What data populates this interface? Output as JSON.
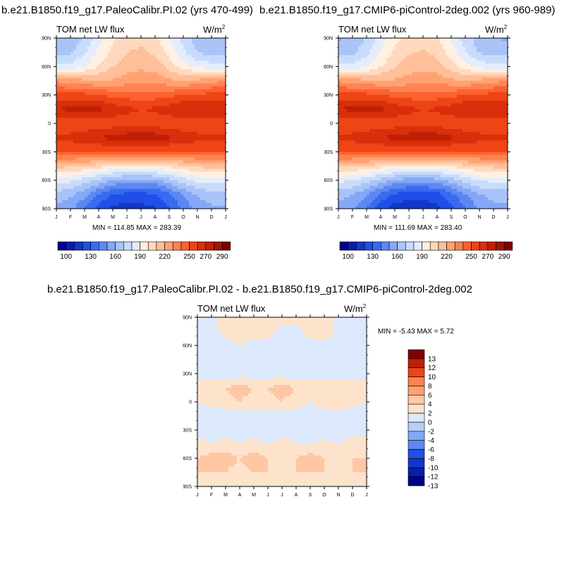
{
  "chart_data": [
    {
      "type": "heatmap",
      "title": "b.e21.B1850.f19_g17.PaleoCalibr.PI.02 (yrs 470-499)",
      "plot_title": "TOM net LW flux",
      "units": "W/m",
      "units_exp": "2",
      "stats": "MIN = 114.85 MAX = 283.39",
      "x_ticks": [
        "J",
        "F",
        "M",
        "A",
        "M",
        "J",
        "J",
        "A",
        "S",
        "O",
        "N",
        "D",
        "J"
      ],
      "y_ticks": [
        "90N",
        "60N",
        "30N",
        "0",
        "30S",
        "60S",
        "90S"
      ],
      "colorbar_labels": [
        "100",
        "130",
        "160",
        "190",
        "220",
        "250",
        "270",
        "290"
      ],
      "colorbar_levels": [
        100,
        110,
        120,
        130,
        140,
        150,
        160,
        170,
        180,
        190,
        200,
        210,
        220,
        230,
        240,
        250,
        260,
        270,
        280,
        290,
        300
      ],
      "field": {
        "lat": [
          -90,
          -75,
          -60,
          -45,
          -30,
          -15,
          0,
          15,
          30,
          45,
          60,
          75,
          90
        ],
        "month_index": [
          0,
          1,
          2,
          3,
          4,
          5,
          6,
          7,
          8,
          9,
          10,
          11,
          12
        ],
        "values": [
          [
            158,
            153,
            140,
            125,
            117,
            116,
            117,
            119,
            128,
            142,
            153,
            158,
            158
          ],
          [
            166,
            162,
            153,
            140,
            130,
            126,
            126,
            128,
            138,
            151,
            161,
            166,
            166
          ],
          [
            185,
            182,
            176,
            168,
            160,
            156,
            156,
            158,
            166,
            176,
            183,
            185,
            185
          ],
          [
            214,
            212,
            209,
            205,
            200,
            198,
            198,
            200,
            203,
            208,
            212,
            214,
            214
          ],
          [
            250,
            249,
            249,
            249,
            249,
            248,
            248,
            248,
            248,
            249,
            249,
            250,
            250
          ],
          [
            262,
            264,
            267,
            270,
            274,
            277,
            278,
            277,
            272,
            267,
            264,
            262,
            262
          ],
          [
            250,
            251,
            252,
            253,
            254,
            254,
            254,
            254,
            253,
            252,
            251,
            250,
            250
          ],
          [
            270,
            274,
            275,
            273,
            267,
            263,
            260,
            262,
            266,
            272,
            272,
            270,
            270
          ],
          [
            253,
            254,
            253,
            250,
            247,
            245,
            244,
            245,
            247,
            250,
            252,
            253,
            253
          ],
          [
            228,
            225,
            223,
            220,
            221,
            224,
            226,
            226,
            222,
            220,
            223,
            227,
            228
          ],
          [
            185,
            184,
            190,
            200,
            210,
            216,
            218,
            216,
            206,
            195,
            188,
            185,
            185
          ],
          [
            165,
            168,
            178,
            192,
            203,
            210,
            212,
            208,
            196,
            182,
            170,
            166,
            165
          ],
          [
            160,
            162,
            172,
            186,
            198,
            205,
            207,
            203,
            190,
            176,
            165,
            161,
            160
          ]
        ]
      }
    },
    {
      "type": "heatmap",
      "title": "b.e21.B1850.f19_g17.CMIP6-piControl-2deg.002 (yrs 960-989)",
      "plot_title": "TOM net LW flux",
      "units": "W/m",
      "units_exp": "2",
      "stats": "MIN = 111.69 MAX = 283.40",
      "x_ticks": [
        "J",
        "F",
        "M",
        "A",
        "M",
        "J",
        "J",
        "A",
        "S",
        "O",
        "N",
        "D",
        "J"
      ],
      "y_ticks": [
        "90N",
        "60N",
        "30N",
        "0",
        "30S",
        "60S",
        "90S"
      ],
      "colorbar_labels": [
        "100",
        "130",
        "160",
        "190",
        "220",
        "250",
        "270",
        "290"
      ],
      "colorbar_levels": [
        100,
        110,
        120,
        130,
        140,
        150,
        160,
        170,
        180,
        190,
        200,
        210,
        220,
        230,
        240,
        250,
        260,
        270,
        280,
        290,
        300
      ],
      "field": {
        "lat": [
          -90,
          -75,
          -60,
          -45,
          -30,
          -15,
          0,
          15,
          30,
          45,
          60,
          75,
          90
        ],
        "month_index": [
          0,
          1,
          2,
          3,
          4,
          5,
          6,
          7,
          8,
          9,
          10,
          11,
          12
        ],
        "values": [
          [
            156,
            151,
            138,
            123,
            115,
            113,
            114,
            117,
            126,
            140,
            151,
            156,
            156
          ],
          [
            164,
            160,
            151,
            138,
            128,
            124,
            124,
            126,
            136,
            149,
            159,
            164,
            164
          ],
          [
            183,
            180,
            174,
            166,
            158,
            154,
            154,
            156,
            164,
            174,
            181,
            183,
            183
          ],
          [
            213,
            211,
            208,
            204,
            199,
            197,
            197,
            199,
            202,
            207,
            211,
            213,
            213
          ],
          [
            250,
            249,
            249,
            249,
            249,
            248,
            248,
            248,
            248,
            249,
            249,
            250,
            250
          ],
          [
            262,
            264,
            267,
            270,
            274,
            277,
            278,
            277,
            272,
            267,
            264,
            262,
            262
          ],
          [
            250,
            251,
            252,
            253,
            254,
            254,
            254,
            254,
            253,
            252,
            251,
            250,
            250
          ],
          [
            270,
            274,
            275,
            273,
            267,
            263,
            260,
            262,
            266,
            272,
            272,
            270,
            270
          ],
          [
            253,
            254,
            253,
            250,
            247,
            245,
            244,
            245,
            247,
            250,
            252,
            253,
            253
          ],
          [
            228,
            225,
            223,
            220,
            221,
            224,
            226,
            226,
            222,
            220,
            223,
            227,
            228
          ],
          [
            184,
            183,
            189,
            199,
            209,
            215,
            217,
            215,
            205,
            194,
            187,
            184,
            184
          ],
          [
            164,
            167,
            177,
            191,
            202,
            209,
            211,
            207,
            195,
            181,
            169,
            165,
            164
          ],
          [
            159,
            161,
            171,
            185,
            197,
            204,
            206,
            202,
            189,
            175,
            164,
            160,
            159
          ]
        ]
      }
    },
    {
      "type": "heatmap",
      "title": "b.e21.B1850.f19_g17.PaleoCalibr.PI.02 - b.e21.B1850.f19_g17.CMIP6-piControl-2deg.002",
      "plot_title": "TOM net LW flux",
      "units": "W/m",
      "units_exp": "2",
      "stats": "MIN =  -5.43 MAX =   5.72",
      "x_ticks": [
        "J",
        "F",
        "M",
        "A",
        "M",
        "J",
        "J",
        "A",
        "S",
        "O",
        "N",
        "D",
        "J"
      ],
      "y_ticks": [
        "90N",
        "60N",
        "30N",
        "0",
        "30S",
        "60S",
        "90S"
      ],
      "colorbar_labels": [
        "13",
        "12",
        "10",
        "8",
        "6",
        "4",
        "2",
        "0",
        "-2",
        "-4",
        "-6",
        "-8",
        "-10",
        "-12",
        "-13"
      ],
      "colorbar_levels": [
        -13,
        -12,
        -10,
        -8,
        -6,
        -4,
        -2,
        0,
        2,
        4,
        6,
        8,
        10,
        12,
        13
      ],
      "field": {
        "lat": [
          -90,
          -75,
          -60,
          -45,
          -30,
          -15,
          0,
          15,
          30,
          45,
          60,
          75,
          90
        ],
        "month_index": [
          0,
          1,
          2,
          3,
          4,
          5,
          6,
          7,
          8,
          9,
          10,
          11,
          12
        ],
        "values": [
          [
            1,
            1,
            1,
            1,
            1,
            1,
            1,
            1,
            2,
            1,
            1,
            1,
            1
          ],
          [
            2,
            2,
            2,
            1,
            2,
            2,
            1,
            2,
            2,
            2,
            1,
            2,
            2
          ],
          [
            2,
            3,
            3,
            2,
            3,
            2,
            2,
            2,
            3,
            2,
            2,
            2,
            2
          ],
          [
            1,
            0,
            1,
            0,
            1,
            0,
            1,
            0,
            0,
            1,
            0,
            1,
            1
          ],
          [
            -1,
            -1,
            -1,
            -1,
            -1,
            -2,
            -1,
            -1,
            -1,
            -2,
            -1,
            -1,
            -1
          ],
          [
            -1,
            -2,
            -1,
            -1,
            -1,
            -1,
            -2,
            -1,
            -1,
            -1,
            -1,
            -2,
            -1
          ],
          [
            0,
            1,
            1,
            2,
            1,
            1,
            2,
            1,
            0,
            1,
            2,
            1,
            0
          ],
          [
            1,
            2,
            2,
            3,
            2,
            2,
            3,
            2,
            1,
            2,
            2,
            1,
            1
          ],
          [
            -1,
            -1,
            -2,
            -1,
            -1,
            -1,
            -1,
            -2,
            -1,
            -1,
            -1,
            -1,
            -1
          ],
          [
            -2,
            -1,
            -1,
            -2,
            -1,
            -1,
            -1,
            -1,
            -1,
            -2,
            -1,
            -1,
            -2
          ],
          [
            -1,
            -1,
            -1,
            0,
            -1,
            -1,
            -1,
            0,
            -1,
            -1,
            -1,
            -1,
            -1
          ],
          [
            -1,
            -1,
            1,
            2,
            1,
            1,
            -1,
            -1,
            1,
            2,
            -1,
            -1,
            -1
          ],
          [
            -1,
            -1,
            1,
            2,
            2,
            1,
            1,
            1,
            2,
            1,
            -1,
            -1,
            -1
          ]
        ]
      }
    }
  ],
  "palette": {
    "abs": [
      "#00008b",
      "#0a1ca8",
      "#1436c8",
      "#1f4fe6",
      "#3a6af0",
      "#5d88f2",
      "#84a8f5",
      "#a9c4f8",
      "#c8dbfb",
      "#e3edfd",
      "#fff0e2",
      "#ffd9bd",
      "#ffbf98",
      "#ffa273",
      "#ff8350",
      "#fc6130",
      "#ee4416",
      "#d92f0a",
      "#bf2005",
      "#a01404",
      "#7f0000"
    ],
    "diff": [
      "#00008b",
      "#0a1ca8",
      "#1436c8",
      "#1f4fe6",
      "#5d88f2",
      "#84a8f5",
      "#b4cdf9",
      "#dce8fc",
      "#fde3cc",
      "#ffc7a4",
      "#ffa273",
      "#ff8350",
      "#ee4416",
      "#bf2005",
      "#7f0000"
    ]
  }
}
